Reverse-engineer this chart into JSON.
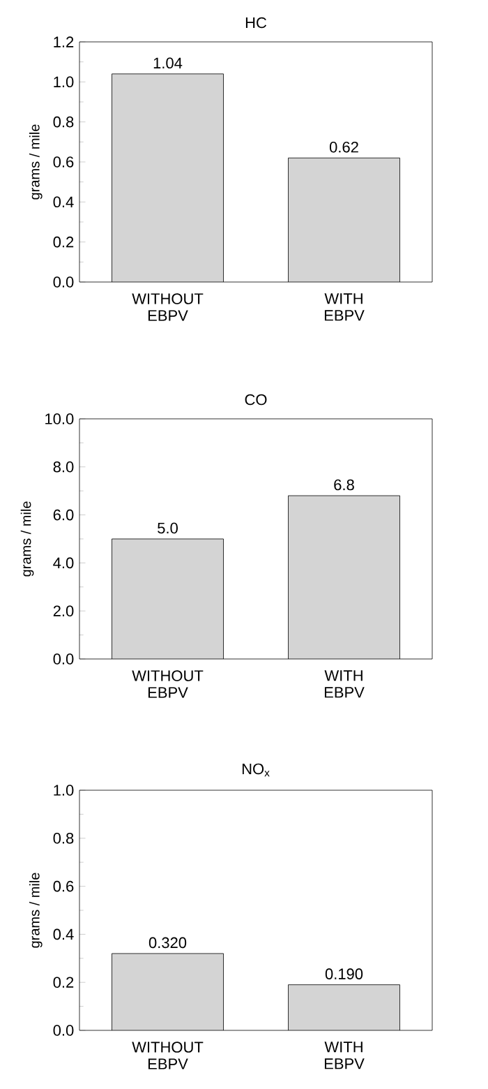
{
  "chart_data": [
    {
      "type": "bar",
      "title": "HC",
      "ylabel": "grams / mile",
      "categories": [
        "WITHOUT EBPV",
        "WITH EBPV"
      ],
      "values": [
        1.04,
        0.62
      ],
      "value_labels": [
        "1.04",
        "0.62"
      ],
      "color": "#d4d4d4",
      "ylim": [
        0,
        1.2
      ],
      "yticks": [
        {
          "value": 0,
          "label": "0.0"
        },
        {
          "value": 0.2,
          "label": "0.2"
        },
        {
          "value": 0.4,
          "label": "0.4"
        },
        {
          "value": 0.6,
          "label": "0.6"
        },
        {
          "value": 0.8,
          "label": "0.8"
        },
        {
          "value": 1.0,
          "label": "1.0"
        },
        {
          "value": 1.2,
          "label": "1.2"
        }
      ]
    },
    {
      "type": "bar",
      "title": "CO",
      "ylabel": "grams / mile",
      "categories": [
        "WITHOUT EBPV",
        "WITH EBPV"
      ],
      "values": [
        5.0,
        6.8
      ],
      "value_labels": [
        "5.0",
        "6.8"
      ],
      "color": "#d4d4d4",
      "ylim": [
        0,
        10
      ],
      "yticks": [
        {
          "value": 0,
          "label": "0.0"
        },
        {
          "value": 2,
          "label": "2.0"
        },
        {
          "value": 4,
          "label": "4.0"
        },
        {
          "value": 6,
          "label": "6.0"
        },
        {
          "value": 8,
          "label": "8.0"
        },
        {
          "value": 10,
          "label": "10.0"
        }
      ]
    },
    {
      "type": "bar",
      "title": "NO$_{x}$",
      "ylabel": "grams / mile",
      "categories": [
        "WITHOUT EBPV",
        "WITH EBPV"
      ],
      "values": [
        0.32,
        0.19
      ],
      "value_labels": [
        "0.320",
        "0.190"
      ],
      "color": "#d4d4d4",
      "ylim": [
        0,
        1.0
      ],
      "yticks": [
        {
          "value": 0,
          "label": "0.0"
        },
        {
          "value": 0.2,
          "label": "0.2"
        },
        {
          "value": 0.4,
          "label": "0.4"
        },
        {
          "value": 0.6,
          "label": "0.6"
        },
        {
          "value": 0.8,
          "label": "0.8"
        },
        {
          "value": 1.0,
          "label": "1.0"
        }
      ]
    }
  ]
}
